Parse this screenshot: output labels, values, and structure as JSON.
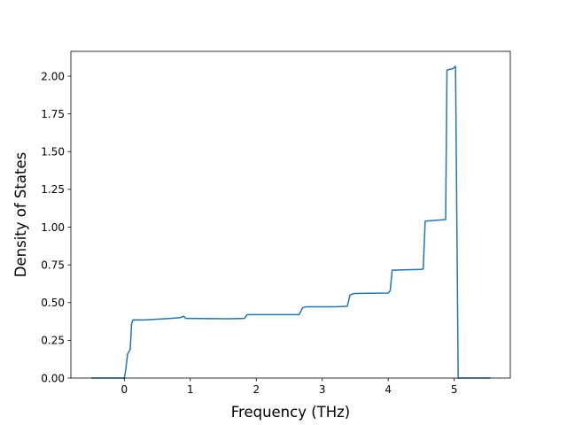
{
  "chart_data": {
    "type": "line",
    "title": "",
    "xlabel": "Frequency (THz)",
    "ylabel": "Density of States",
    "xlim": [
      -0.81,
      5.85
    ],
    "ylim": [
      0,
      2.1644
    ],
    "xticks": [
      0,
      1,
      2,
      3,
      4,
      5
    ],
    "xtick_labels": [
      "0",
      "1",
      "2",
      "3",
      "4",
      "5"
    ],
    "yticks": [
      0,
      0.25,
      0.5,
      0.75,
      1.0,
      1.25,
      1.5,
      1.75,
      2.0
    ],
    "ytick_labels": [
      "0.00",
      "0.25",
      "0.50",
      "0.75",
      "1.00",
      "1.25",
      "1.50",
      "1.75",
      "2.00"
    ],
    "grid": false,
    "legend": "none",
    "colors": {
      "line": "#1f77b4",
      "axes": "#000000",
      "background": "#ffffff"
    },
    "series": [
      {
        "x": [
          -0.5,
          -0.2,
          0.0,
          0.02,
          0.05,
          0.09,
          0.11,
          0.13,
          0.18,
          0.3,
          0.5,
          0.7,
          0.85,
          0.9,
          0.93,
          1.0,
          1.3,
          1.6,
          1.82,
          1.86,
          1.9,
          2.3,
          2.65,
          2.7,
          2.75,
          3.0,
          3.2,
          3.38,
          3.42,
          3.48,
          3.7,
          4.0,
          4.03,
          4.06,
          4.3,
          4.5,
          4.53,
          4.56,
          4.8,
          4.87,
          4.89,
          4.98,
          5.02,
          5.06,
          5.3,
          5.55
        ],
        "y": [
          0.0,
          0.0,
          0.0,
          0.05,
          0.16,
          0.19,
          0.36,
          0.385,
          0.386,
          0.385,
          0.39,
          0.395,
          0.4,
          0.41,
          0.395,
          0.395,
          0.394,
          0.393,
          0.395,
          0.42,
          0.42,
          0.42,
          0.42,
          0.465,
          0.472,
          0.472,
          0.472,
          0.476,
          0.55,
          0.56,
          0.562,
          0.563,
          0.58,
          0.715,
          0.718,
          0.72,
          0.722,
          1.04,
          1.048,
          1.05,
          2.04,
          2.05,
          2.065,
          0.0,
          0.0,
          0.0
        ]
      }
    ]
  }
}
